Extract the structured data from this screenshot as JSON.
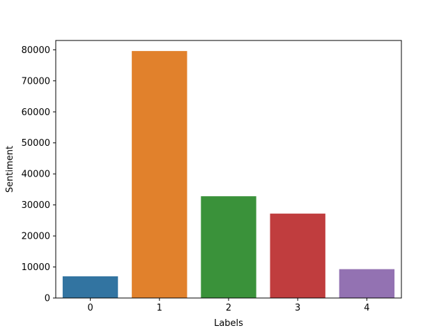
{
  "chart_data": {
    "type": "bar",
    "title": "",
    "xlabel": "Labels",
    "ylabel": "Sentiment",
    "categories": [
      "0",
      "1",
      "2",
      "3",
      "4"
    ],
    "values": [
      7000,
      79600,
      32800,
      27200,
      9300
    ],
    "ylim": [
      0,
      83000
    ],
    "yticks": [
      0,
      10000,
      20000,
      30000,
      40000,
      50000,
      60000,
      70000,
      80000
    ],
    "colors": [
      "#3274a1",
      "#e1812c",
      "#3a923a",
      "#c03d3e",
      "#9372b2"
    ],
    "grid": false,
    "legend": "none"
  }
}
